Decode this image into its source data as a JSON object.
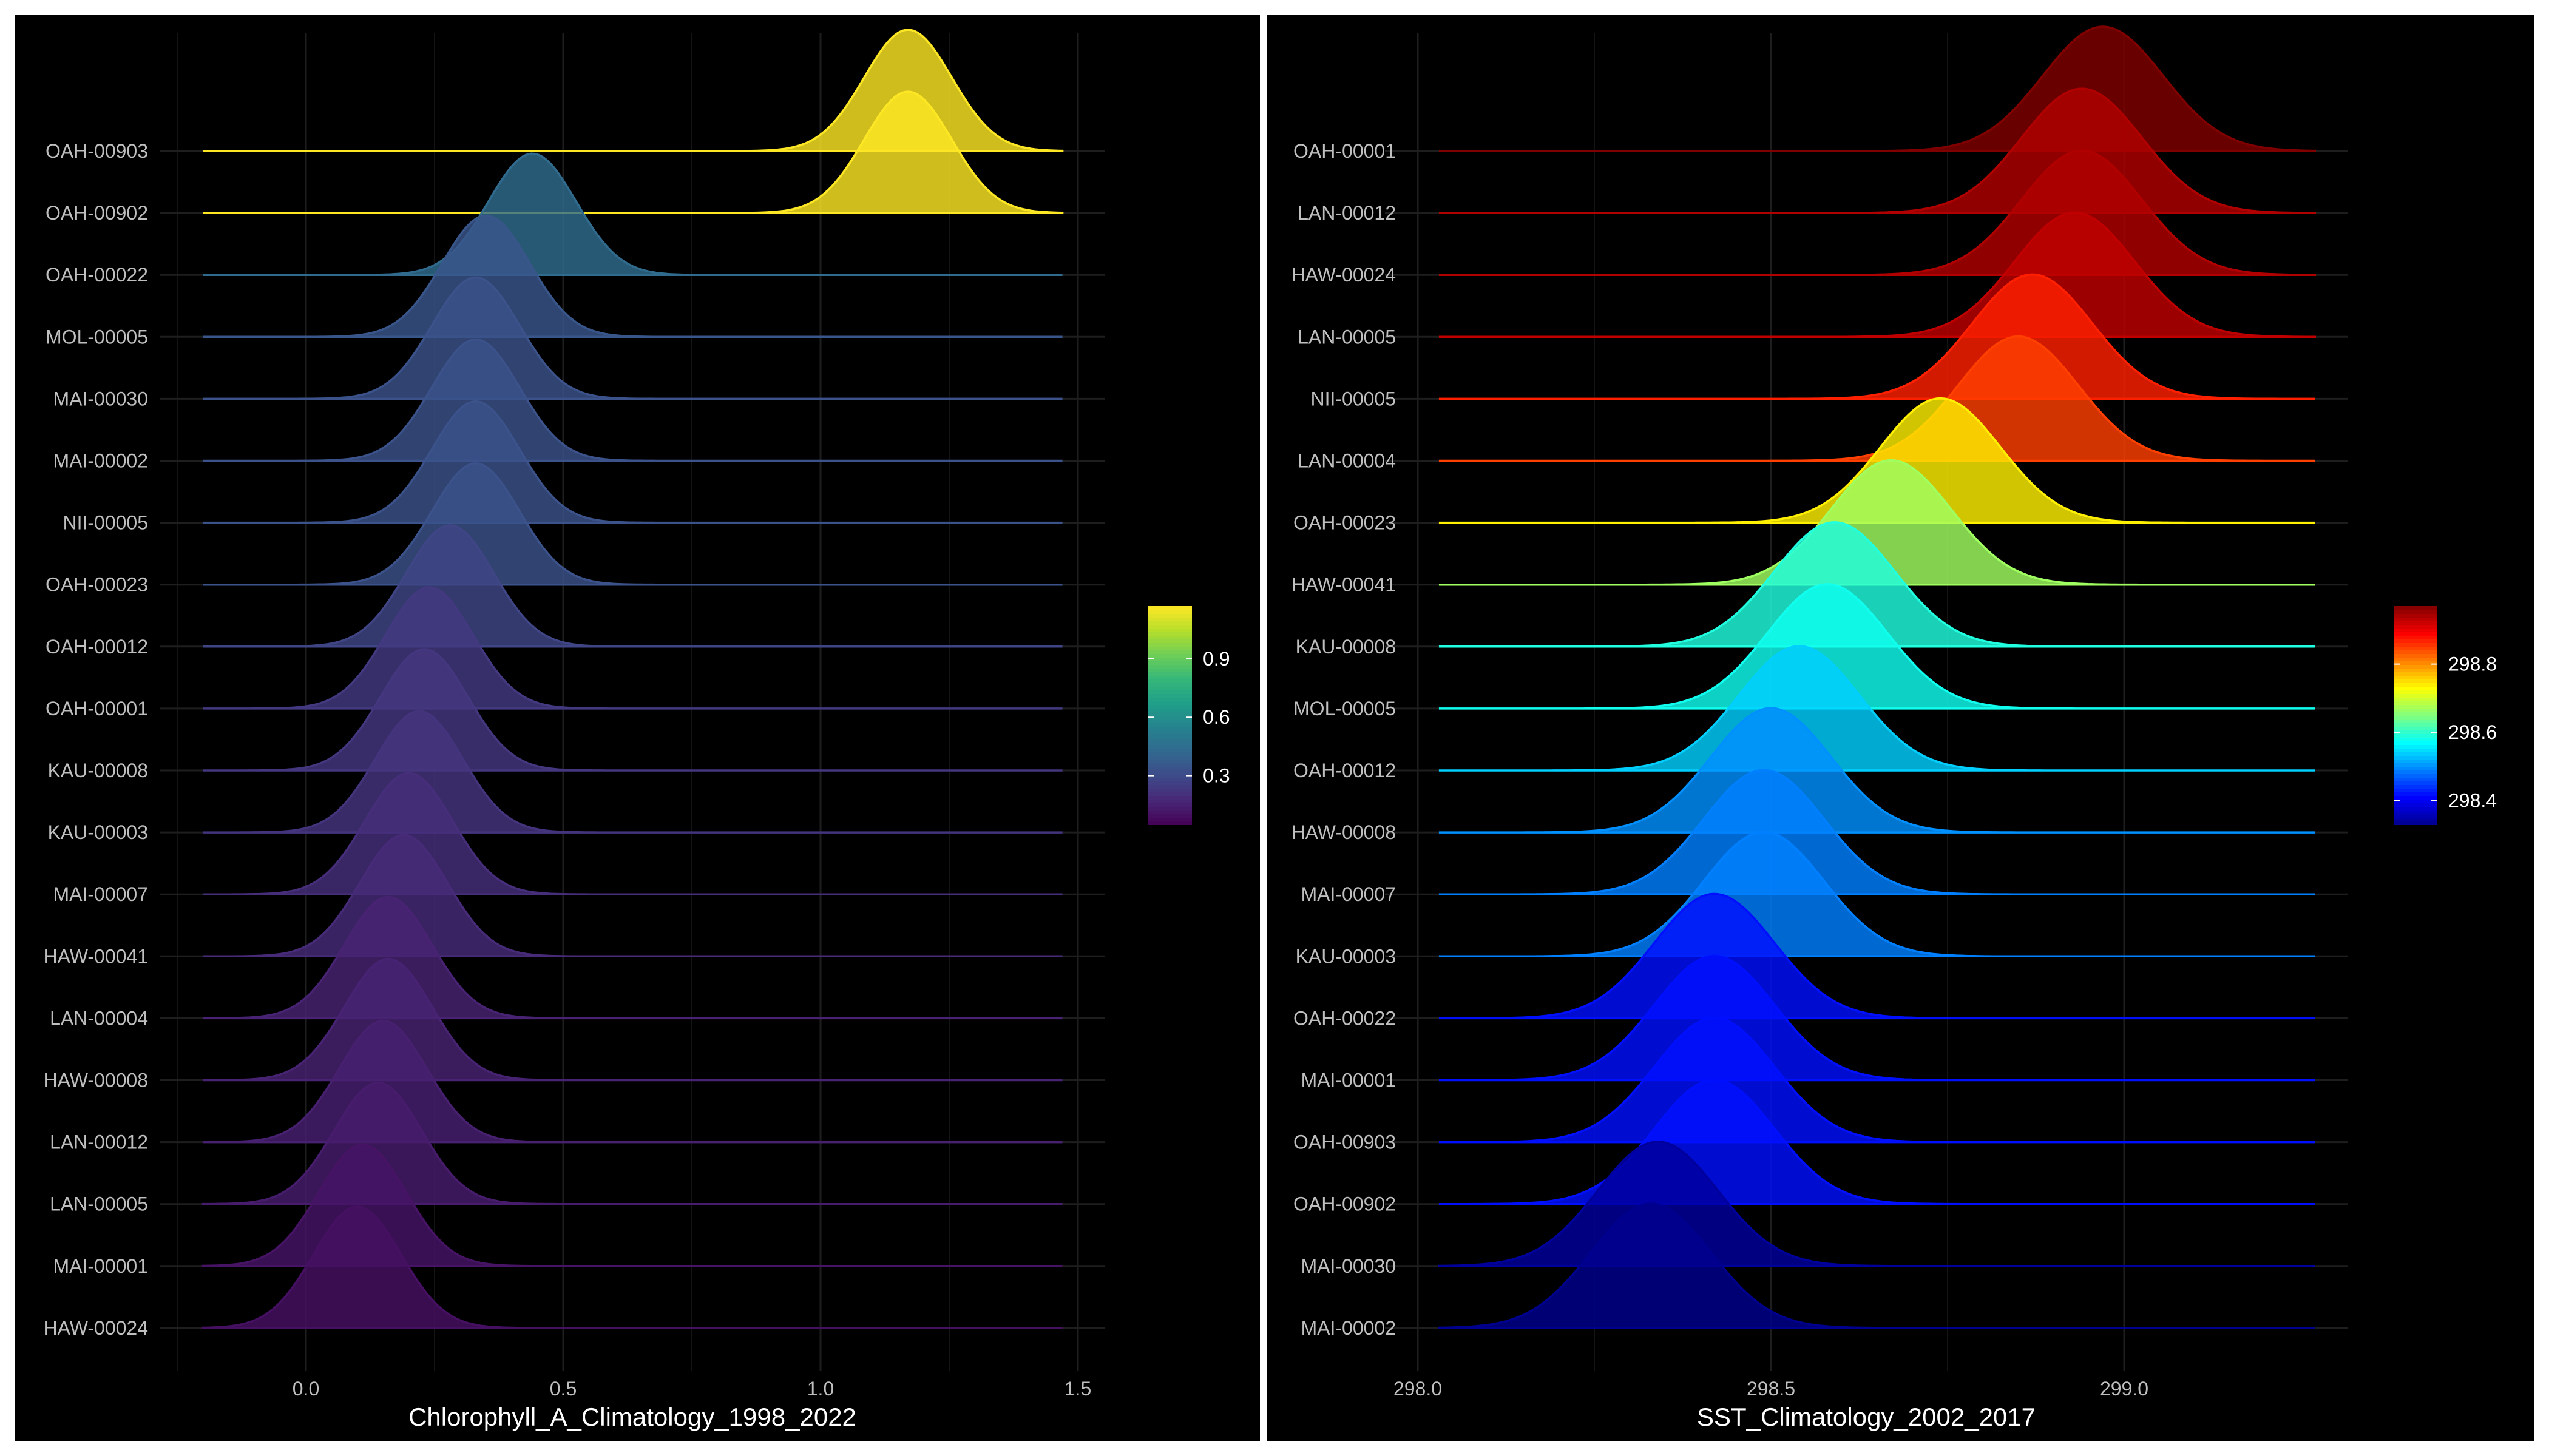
{
  "chart_data": [
    {
      "type": "ridgeline",
      "xlabel": "Chlorophyll_A_Climatology_1998_2022",
      "xlim": [
        -0.2,
        1.47
      ],
      "xticks": [
        "0.0",
        "0.5",
        "1.0",
        "1.5"
      ],
      "xtick_values": [
        0.0,
        0.5,
        1.0,
        1.5
      ],
      "grid": "on",
      "colormap": "viridis",
      "legend": {
        "position": "right",
        "min": 0.05,
        "max": 1.17,
        "ticks": [
          "0.3",
          "0.6",
          "0.9"
        ],
        "tick_values": [
          0.3,
          0.6,
          0.9
        ]
      },
      "series": [
        {
          "name": "OAH-00903",
          "peak": 1.17
        },
        {
          "name": "OAH-00902",
          "peak": 1.17
        },
        {
          "name": "OAH-00022",
          "peak": 0.44
        },
        {
          "name": "MOL-00005",
          "peak": 0.35
        },
        {
          "name": "MAI-00030",
          "peak": 0.33
        },
        {
          "name": "MAI-00002",
          "peak": 0.33
        },
        {
          "name": "NII-00005",
          "peak": 0.33
        },
        {
          "name": "OAH-00023",
          "peak": 0.33
        },
        {
          "name": "OAH-00012",
          "peak": 0.28
        },
        {
          "name": "OAH-00001",
          "peak": 0.24
        },
        {
          "name": "KAU-00008",
          "peak": 0.23
        },
        {
          "name": "KAU-00003",
          "peak": 0.22
        },
        {
          "name": "MAI-00007",
          "peak": 0.2
        },
        {
          "name": "HAW-00041",
          "peak": 0.19
        },
        {
          "name": "LAN-00004",
          "peak": 0.16
        },
        {
          "name": "HAW-00008",
          "peak": 0.16
        },
        {
          "name": "LAN-00012",
          "peak": 0.15
        },
        {
          "name": "LAN-00005",
          "peak": 0.14
        },
        {
          "name": "MAI-00001",
          "peak": 0.11
        },
        {
          "name": "HAW-00024",
          "peak": 0.1
        }
      ]
    },
    {
      "type": "ridgeline",
      "xlabel": "SST_Climatology_2002_2017",
      "xlim": [
        298.03,
        299.27
      ],
      "xticks": [
        "298.0",
        "298.5",
        "299.0"
      ],
      "xtick_values": [
        298.0,
        298.5,
        299.0
      ],
      "grid": "on",
      "colormap": "jet",
      "legend": {
        "position": "right",
        "min": 298.33,
        "max": 298.97,
        "ticks": [
          "298.4",
          "298.6",
          "298.8"
        ],
        "tick_values": [
          298.4,
          298.6,
          298.8
        ]
      },
      "series": [
        {
          "name": "OAH-00001",
          "peak": 298.97
        },
        {
          "name": "LAN-00012",
          "peak": 298.94
        },
        {
          "name": "HAW-00024",
          "peak": 298.94
        },
        {
          "name": "LAN-00005",
          "peak": 298.93
        },
        {
          "name": "NII-00005",
          "peak": 298.87
        },
        {
          "name": "LAN-00004",
          "peak": 298.85
        },
        {
          "name": "OAH-00023",
          "peak": 298.74
        },
        {
          "name": "HAW-00041",
          "peak": 298.67
        },
        {
          "name": "KAU-00008",
          "peak": 298.59
        },
        {
          "name": "MOL-00005",
          "peak": 298.58
        },
        {
          "name": "OAH-00012",
          "peak": 298.54
        },
        {
          "name": "HAW-00008",
          "peak": 298.5
        },
        {
          "name": "MAI-00007",
          "peak": 298.49
        },
        {
          "name": "KAU-00003",
          "peak": 298.49
        },
        {
          "name": "OAH-00022",
          "peak": 298.42
        },
        {
          "name": "MAI-00001",
          "peak": 298.42
        },
        {
          "name": "OAH-00903",
          "peak": 298.42
        },
        {
          "name": "OAH-00902",
          "peak": 298.42
        },
        {
          "name": "MAI-00030",
          "peak": 298.34
        },
        {
          "name": "MAI-00002",
          "peak": 298.33
        }
      ]
    }
  ]
}
